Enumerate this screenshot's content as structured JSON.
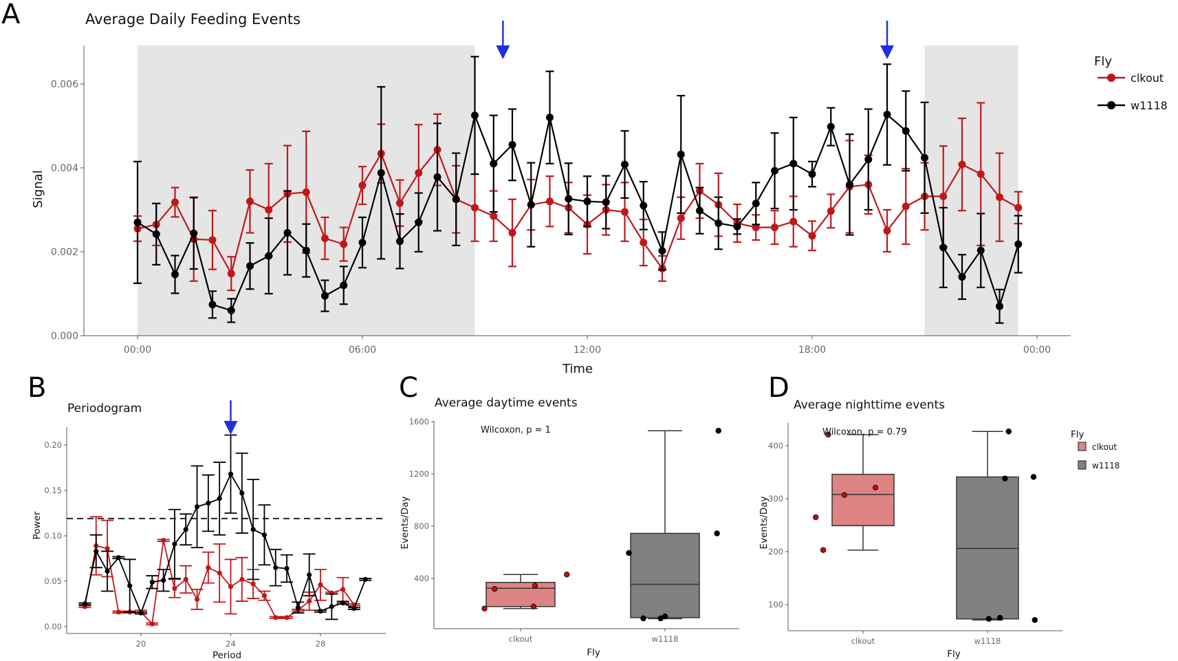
{
  "panels": {
    "A": "A",
    "B": "B",
    "C": "C",
    "D": "D"
  },
  "chart_data": [
    {
      "id": "A",
      "type": "line",
      "title": "Average Daily Feeding Events",
      "xlabel": "Time",
      "ylabel": "Signal",
      "x_tick_labels": [
        "00:00",
        "06:00",
        "12:00",
        "18:00",
        "00:00"
      ],
      "x_ticks_hours": [
        0,
        6,
        12,
        18,
        24
      ],
      "y_ticks": [
        0.0,
        0.002,
        0.004,
        0.006
      ],
      "y_tick_labels": [
        "0.000",
        "0.002",
        "0.004",
        "0.006"
      ],
      "ylim": [
        0.0,
        0.0069
      ],
      "xlim_hours": [
        -1.3,
        25
      ],
      "shaded_intervals_hours": [
        [
          0,
          9
        ],
        [
          21,
          23.5
        ]
      ],
      "arrows_hours": [
        9.75,
        20
      ],
      "legend": {
        "title": "Fly",
        "position": "right",
        "entries": [
          "clkout",
          "w1118"
        ]
      },
      "x_hours_step": 0.5,
      "series": [
        {
          "name": "clkout",
          "color": "#c0171b",
          "values": [
            0.00255,
            0.00265,
            0.00318,
            0.0023,
            0.00228,
            0.00148,
            0.0032,
            0.003,
            0.00338,
            0.00342,
            0.00232,
            0.00218,
            0.00358,
            0.00434,
            0.00316,
            0.00388,
            0.00443,
            0.00325,
            0.00305,
            0.00285,
            0.00245,
            0.00312,
            0.0032,
            0.00305,
            0.00265,
            0.003,
            0.00295,
            0.00222,
            0.0016,
            0.0028,
            0.00345,
            0.00312,
            0.00268,
            0.00258,
            0.00258,
            0.00272,
            0.00238,
            0.00297,
            0.00355,
            0.0036,
            0.0025,
            0.00308,
            0.00332,
            0.00332,
            0.00408,
            0.00385,
            0.0033,
            0.00305
          ],
          "err": [
            0.0003,
            0.0005,
            0.00035,
            0.001,
            0.0007,
            0.0004,
            0.00075,
            0.0011,
            0.00115,
            0.00145,
            0.0005,
            0.0004,
            0.00045,
            0.0007,
            0.00055,
            0.00115,
            0.00085,
            0.0008,
            0.0008,
            0.0006,
            0.0008,
            0.0006,
            0.0006,
            0.0006,
            0.0007,
            0.0006,
            0.0007,
            0.00055,
            0.0003,
            0.0005,
            0.00065,
            0.00075,
            0.00045,
            0.0003,
            0.0004,
            0.0006,
            0.00035,
            0.0004,
            0.0011,
            0.0007,
            0.0005,
            0.0009,
            0.0008,
            0.0012,
            0.0011,
            0.0017,
            0.00105,
            0.00038
          ]
        },
        {
          "name": "w1118",
          "color": "#000000",
          "values": [
            0.0027,
            0.00242,
            0.00146,
            0.00244,
            0.00074,
            0.0006,
            0.00166,
            0.0019,
            0.00245,
            0.00203,
            0.00095,
            0.0012,
            0.00222,
            0.00388,
            0.00225,
            0.0027,
            0.00378,
            0.00325,
            0.00525,
            0.0041,
            0.00455,
            0.00312,
            0.0052,
            0.00326,
            0.0032,
            0.00318,
            0.00408,
            0.0031,
            0.00202,
            0.00432,
            0.00298,
            0.00268,
            0.0026,
            0.00315,
            0.00393,
            0.0041,
            0.00385,
            0.00498,
            0.0036,
            0.0042,
            0.00527,
            0.00488,
            0.00424,
            0.0021,
            0.0014,
            0.00203,
            0.0007,
            0.00218
          ],
          "err": [
            0.00145,
            0.00073,
            0.00045,
            0.00085,
            0.00032,
            0.00028,
            0.00055,
            0.0009,
            0.001,
            0.00063,
            0.00037,
            0.00045,
            0.0006,
            0.00205,
            0.00065,
            0.0007,
            0.00128,
            0.0011,
            0.0014,
            0.00115,
            0.00085,
            0.001,
            0.0011,
            0.00085,
            0.0006,
            0.00063,
            0.0008,
            0.00057,
            0.00045,
            0.0014,
            0.00055,
            0.00062,
            0.00018,
            0.0005,
            0.0009,
            0.0011,
            0.0003,
            0.00045,
            0.0012,
            0.0012,
            0.0012,
            0.00095,
            0.00132,
            0.00095,
            0.00053,
            0.00088,
            0.0004,
            0.00068
          ]
        }
      ]
    },
    {
      "id": "B",
      "type": "line",
      "title": "Periodogram",
      "xlabel": "Period",
      "ylabel": "Power",
      "x_ticks": [
        20,
        24,
        28
      ],
      "x_tick_labels": [
        "20",
        "24",
        "28"
      ],
      "y_ticks": [
        0.0,
        0.05,
        0.1,
        0.15,
        0.2
      ],
      "y_tick_labels": [
        "0.00",
        "0.05",
        "0.10",
        "0.15",
        "0.20"
      ],
      "xlim": [
        15.3,
        32.5
      ],
      "ylim": [
        -0.008,
        0.222
      ],
      "significance_line": 0.119,
      "arrow_x": 24,
      "series": [
        {
          "name": "clkout",
          "color": "#c0171b",
          "x": [
            17.5,
            18,
            18.5,
            19,
            19.5,
            20,
            20.5,
            21,
            21.5,
            22,
            22.5,
            23,
            23.5,
            24,
            24.5,
            25,
            25.5,
            26,
            26.5,
            27,
            27.5,
            28,
            28.5,
            29,
            29.5
          ],
          "values": [
            0.022,
            0.089,
            0.086,
            0.016,
            0.016,
            0.016,
            0.003,
            0.095,
            0.042,
            0.052,
            0.03,
            0.065,
            0.059,
            0.044,
            0.052,
            0.047,
            0.034,
            0.01,
            0.01,
            0.018,
            0.028,
            0.046,
            0.037,
            0.041,
            0.024
          ],
          "err": [
            0.001,
            0.032,
            0.031,
            0.001,
            0.001,
            0.002,
            0.001,
            0.001,
            0.01,
            0.015,
            0.011,
            0.017,
            0.032,
            0.03,
            0.024,
            0.016,
            0.005,
            0.001,
            0.001,
            0.001,
            0.01,
            0.017,
            0.001,
            0.013,
            0.001
          ]
        },
        {
          "name": "w1118",
          "color": "#000000",
          "x": [
            17.5,
            18,
            18.5,
            19,
            19.5,
            20,
            20.5,
            21,
            21.5,
            22,
            22.5,
            23,
            23.5,
            24,
            24.5,
            25,
            25.5,
            26,
            26.5,
            27,
            27.5,
            28,
            28.5,
            29,
            29.5,
            30
          ],
          "values": [
            0.025,
            0.083,
            0.061,
            0.076,
            0.045,
            0.015,
            0.049,
            0.051,
            0.091,
            0.107,
            0.132,
            0.136,
            0.141,
            0.168,
            0.147,
            0.107,
            0.101,
            0.065,
            0.064,
            0.021,
            0.057,
            0.017,
            0.022,
            0.026,
            0.02,
            0.052
          ],
          "err": [
            0.001,
            0.018,
            0.022,
            0.001,
            0.029,
            0.001,
            0.007,
            0.012,
            0.038,
            0.017,
            0.045,
            0.031,
            0.04,
            0.043,
            0.044,
            0.055,
            0.033,
            0.02,
            0.015,
            0.006,
            0.023,
            0.001,
            0.014,
            0.001,
            0.001,
            0.001
          ]
        }
      ]
    },
    {
      "id": "C",
      "type": "box",
      "title": "Average daytime events",
      "xlabel": "Fly",
      "ylabel": "Events/Day",
      "annotation": "Wilcoxon, p = 1",
      "categories": [
        "clkout",
        "w1118"
      ],
      "y_ticks": [
        400,
        800,
        1200,
        1600
      ],
      "y_tick_labels": [
        "400",
        "800",
        "1200",
        "1600"
      ],
      "ylim": [
        25,
        1600
      ],
      "boxes": [
        {
          "name": "clkout",
          "fill": "#de8383",
          "min": 170,
          "q1": 185,
          "median": 325,
          "q3": 370,
          "max": 430,
          "points": [
            [
              -0.25,
              170
            ],
            [
              -0.18,
              320
            ],
            [
              0.1,
              345
            ],
            [
              0.09,
              185
            ],
            [
              0.32,
              430
            ]
          ]
        },
        {
          "name": "w1118",
          "fill": "#808080",
          "min": 92,
          "q1": 100,
          "median": 355,
          "q3": 745,
          "max": 1530,
          "points": [
            [
              -0.25,
              595
            ],
            [
              -0.15,
              95
            ],
            [
              -0.03,
              95
            ],
            [
              0.0,
              110
            ],
            [
              0.37,
              1530
            ],
            [
              0.36,
              745
            ]
          ]
        }
      ]
    },
    {
      "id": "D",
      "type": "box",
      "title": "Average nighttime events",
      "xlabel": "Fly",
      "ylabel": "Events/Day",
      "annotation": "Wilcoxon, p = 0.79",
      "categories": [
        "clkout",
        "w1118"
      ],
      "y_ticks": [
        100,
        200,
        300,
        400
      ],
      "y_tick_labels": [
        "100",
        "200",
        "300",
        "400"
      ],
      "ylim": [
        50,
        445
      ],
      "legend": {
        "title": "Fly",
        "position": "right",
        "entries": [
          "clkout",
          "w1118"
        ]
      },
      "boxes": [
        {
          "name": "clkout",
          "fill": "#de8383",
          "min": 203,
          "q1": 249,
          "median": 308,
          "q3": 346,
          "max": 421,
          "points": [
            [
              -0.38,
              265
            ],
            [
              -0.32,
              203
            ],
            [
              -0.28,
              421
            ],
            [
              -0.15,
              307
            ],
            [
              0.1,
              321
            ]
          ]
        },
        {
          "name": "w1118",
          "fill": "#808080",
          "min": 71,
          "q1": 73,
          "median": 206,
          "q3": 341,
          "max": 427,
          "points": [
            [
              0.01,
              73
            ],
            [
              0.1,
              75
            ],
            [
              0.14,
              338
            ],
            [
              0.17,
              427
            ],
            [
              0.37,
              341
            ],
            [
              0.38,
              71
            ]
          ]
        }
      ]
    }
  ]
}
